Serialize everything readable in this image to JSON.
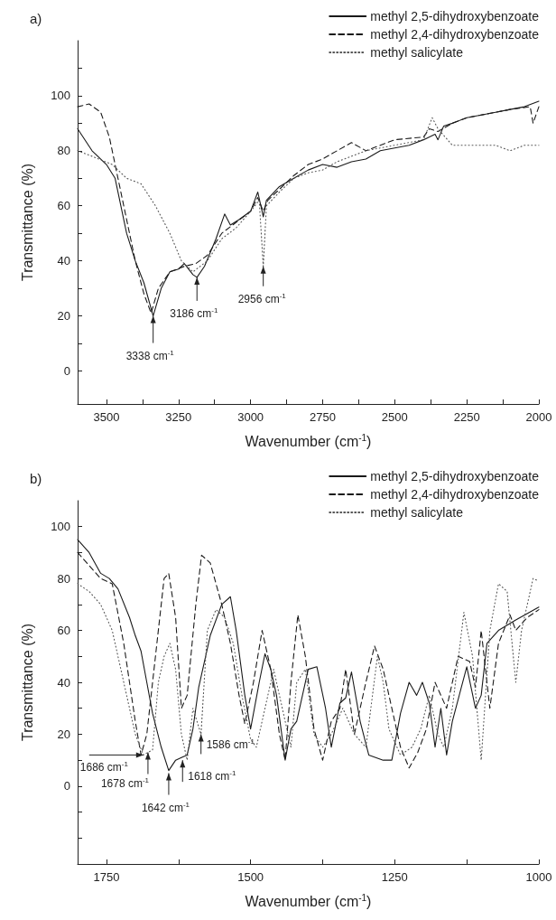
{
  "chart_data": [
    {
      "type": "line",
      "title": "a)",
      "xlabel": "Wavenumber (cm$^{-1}$)",
      "ylabel": "Transmittance (%)",
      "xlim": [
        3600,
        2000
      ],
      "ylim": [
        -12,
        120
      ],
      "xticks": [
        {
          "value": 3500,
          "label": "3500"
        },
        {
          "value": 3375,
          "label": null
        },
        {
          "value": 3250,
          "label": "3250"
        },
        {
          "value": 3125,
          "label": null
        },
        {
          "value": 3000,
          "label": "3000"
        },
        {
          "value": 2875,
          "label": null
        },
        {
          "value": 2750,
          "label": "2750"
        },
        {
          "value": 2625,
          "label": null
        },
        {
          "value": 2500,
          "label": "2500"
        },
        {
          "value": 2375,
          "label": null
        },
        {
          "value": 2250,
          "label": "2250"
        },
        {
          "value": 2125,
          "label": null
        },
        {
          "value": 2000,
          "label": "2000"
        }
      ],
      "yticks": [
        0,
        {
          "value": 10,
          "label": null
        },
        20,
        {
          "value": 30,
          "label": null
        },
        40,
        {
          "value": 50,
          "label": null
        },
        60,
        {
          "value": 70,
          "label": null
        },
        80,
        {
          "value": 90,
          "label": null
        },
        100,
        {
          "value": 110,
          "label": null
        }
      ],
      "grid": false,
      "legend": "top right",
      "marker": "none",
      "series": [
        {
          "name": "methyl 2,5-dihydroxybenzoate",
          "color": "#1a1a1a",
          "line_style": "solid",
          "x": [
            3600,
            3550,
            3500,
            3470,
            3430,
            3400,
            3370,
            3338,
            3310,
            3280,
            3250,
            3230,
            3200,
            3186,
            3160,
            3120,
            3090,
            3070,
            3040,
            3000,
            2975,
            2960,
            2956,
            2945,
            2900,
            2850,
            2800,
            2750,
            2700,
            2650,
            2600,
            2550,
            2500,
            2450,
            2400,
            2360,
            2350,
            2330,
            2300,
            2250,
            2200,
            2150,
            2100,
            2050,
            2000
          ],
          "values": [
            88,
            80,
            75,
            70,
            50,
            40,
            32,
            20,
            30,
            36,
            37,
            39,
            35,
            34,
            38,
            48,
            57,
            53,
            55,
            58,
            65,
            58,
            56,
            62,
            67,
            70,
            73,
            75,
            74,
            76,
            77,
            80,
            81,
            82,
            84,
            86,
            84,
            89,
            90,
            92,
            93,
            94,
            95,
            96,
            98
          ]
        },
        {
          "name": "methyl 2,4-dihydroxybenzoate",
          "color": "#1a1a1a",
          "line_style": "dashed",
          "x": [
            3600,
            3560,
            3520,
            3490,
            3460,
            3430,
            3400,
            3370,
            3345,
            3320,
            3280,
            3230,
            3190,
            3150,
            3100,
            3050,
            3000,
            2975,
            2956,
            2940,
            2900,
            2850,
            2800,
            2750,
            2700,
            2650,
            2600,
            2550,
            2500,
            2400,
            2380,
            2350,
            2300,
            2250,
            2150,
            2100,
            2030,
            2020,
            2000
          ],
          "values": [
            96,
            97,
            94,
            85,
            70,
            55,
            40,
            28,
            21,
            30,
            36,
            38,
            39,
            42,
            50,
            54,
            58,
            63,
            58,
            62,
            66,
            71,
            75,
            77,
            80,
            83,
            80,
            82,
            84,
            85,
            88,
            87,
            90,
            92,
            94,
            95,
            96,
            90,
            96
          ]
        },
        {
          "name": "methyl salicylate",
          "color": "#555555",
          "line_style": "dotted",
          "x": [
            3600,
            3550,
            3480,
            3430,
            3380,
            3330,
            3280,
            3240,
            3200,
            3150,
            3100,
            3050,
            3000,
            2970,
            2956,
            2945,
            2900,
            2850,
            2800,
            2750,
            2700,
            2650,
            2600,
            2500,
            2400,
            2370,
            2350,
            2300,
            2250,
            2200,
            2150,
            2100,
            2050,
            2000
          ],
          "values": [
            80,
            78,
            75,
            70,
            68,
            60,
            50,
            40,
            36,
            40,
            48,
            52,
            58,
            62,
            38,
            60,
            65,
            70,
            72,
            73,
            76,
            78,
            80,
            82,
            84,
            92,
            88,
            82,
            82,
            82,
            82,
            80,
            82,
            82
          ]
        }
      ],
      "annotations": [
        {
          "text": "3338 cm$^{-1}$",
          "x": 3338,
          "y": 20
        },
        {
          "text": "3186 cm$^{-1}$",
          "x": 3186,
          "y": 34
        },
        {
          "text": "2956 cm$^{-1}$",
          "x": 2956,
          "y": 38
        }
      ]
    },
    {
      "type": "line",
      "title": "b)",
      "xlabel": "Wavenumber (cm$^{-1}$)",
      "ylabel": "Transmittance (%)",
      "xlim": [
        1800,
        1000
      ],
      "ylim": [
        -30,
        110
      ],
      "xticks": [
        {
          "value": 1750,
          "label": "1750"
        },
        {
          "value": 1625,
          "label": null
        },
        {
          "value": 1500,
          "label": "1500"
        },
        {
          "value": 1375,
          "label": null
        },
        {
          "value": 1250,
          "label": "1250"
        },
        {
          "value": 1125,
          "label": null
        },
        {
          "value": 1000,
          "label": "1000"
        }
      ],
      "yticks": [
        {
          "value": -20,
          "label": null
        },
        {
          "value": -10,
          "label": null
        },
        0,
        {
          "value": 10,
          "label": null
        },
        20,
        {
          "value": 30,
          "label": null
        },
        40,
        {
          "value": 50,
          "label": null
        },
        60,
        {
          "value": 70,
          "label": null
        },
        80,
        {
          "value": 90,
          "label": null
        },
        100
      ],
      "grid": false,
      "legend": "top right",
      "marker": "none",
      "series": [
        {
          "name": "methyl 2,5-dihydroxybenzoate",
          "color": "#1a1a1a",
          "line_style": "solid",
          "x": [
            1800,
            1780,
            1760,
            1745,
            1730,
            1710,
            1700,
            1690,
            1680,
            1670,
            1655,
            1642,
            1630,
            1620,
            1610,
            1600,
            1590,
            1570,
            1550,
            1535,
            1525,
            1510,
            1500,
            1485,
            1475,
            1465,
            1455,
            1440,
            1430,
            1420,
            1400,
            1385,
            1370,
            1360,
            1345,
            1335,
            1325,
            1310,
            1295,
            1270,
            1255,
            1240,
            1225,
            1212,
            1202,
            1190,
            1180,
            1170,
            1160,
            1150,
            1125,
            1110,
            1100,
            1090,
            1070,
            1040,
            1000
          ],
          "values": [
            95,
            90,
            82,
            80,
            76,
            65,
            58,
            52,
            40,
            28,
            15,
            6,
            10,
            11,
            12,
            22,
            38,
            58,
            70,
            73,
            60,
            35,
            22,
            40,
            51,
            45,
            35,
            10,
            22,
            25,
            45,
            46,
            30,
            15,
            32,
            34,
            44,
            25,
            12,
            10,
            10,
            28,
            40,
            35,
            40,
            32,
            15,
            30,
            12,
            25,
            46,
            30,
            35,
            55,
            60,
            64,
            69
          ]
        },
        {
          "name": "methyl 2,4-dihydroxybenzoate",
          "color": "#1a1a1a",
          "line_style": "dashed",
          "x": [
            1800,
            1780,
            1760,
            1740,
            1720,
            1700,
            1690,
            1680,
            1665,
            1650,
            1642,
            1630,
            1620,
            1610,
            1595,
            1585,
            1570,
            1550,
            1535,
            1520,
            1510,
            1495,
            1480,
            1465,
            1450,
            1440,
            1430,
            1418,
            1405,
            1390,
            1375,
            1360,
            1345,
            1335,
            1320,
            1300,
            1285,
            1270,
            1255,
            1240,
            1225,
            1210,
            1195,
            1180,
            1160,
            1140,
            1120,
            1110,
            1100,
            1085,
            1070,
            1050,
            1040,
            1020,
            1000
          ],
          "values": [
            90,
            85,
            80,
            78,
            55,
            25,
            12,
            20,
            50,
            80,
            82,
            65,
            30,
            35,
            70,
            89,
            86,
            70,
            55,
            35,
            24,
            40,
            60,
            45,
            20,
            10,
            40,
            66,
            50,
            22,
            10,
            25,
            30,
            45,
            20,
            40,
            54,
            45,
            30,
            15,
            7,
            13,
            22,
            40,
            30,
            50,
            48,
            38,
            60,
            30,
            55,
            66,
            60,
            65,
            68
          ]
        },
        {
          "name": "methyl salicylate",
          "color": "#555555",
          "line_style": "dotted",
          "x": [
            1800,
            1780,
            1760,
            1740,
            1720,
            1700,
            1686,
            1670,
            1660,
            1650,
            1640,
            1630,
            1620,
            1610,
            1600,
            1586,
            1575,
            1560,
            1545,
            1530,
            1515,
            1500,
            1490,
            1470,
            1460,
            1445,
            1430,
            1420,
            1405,
            1390,
            1375,
            1360,
            1340,
            1320,
            1300,
            1280,
            1270,
            1260,
            1240,
            1220,
            1205,
            1190,
            1175,
            1165,
            1150,
            1130,
            1115,
            1100,
            1085,
            1070,
            1055,
            1040,
            1030,
            1010,
            1000
          ],
          "values": [
            78,
            75,
            70,
            60,
            40,
            20,
            12,
            14,
            40,
            50,
            55,
            45,
            20,
            10,
            30,
            20,
            60,
            68,
            65,
            55,
            35,
            18,
            15,
            35,
            45,
            30,
            15,
            40,
            45,
            20,
            15,
            20,
            30,
            20,
            15,
            50,
            40,
            22,
            12,
            15,
            22,
            35,
            20,
            15,
            30,
            67,
            50,
            10,
            60,
            78,
            75,
            40,
            60,
            80,
            79
          ]
        }
      ],
      "annotations": [
        {
          "text": "1686 cm$^{-1}$",
          "x": 1686,
          "y": 12
        },
        {
          "text": "1678 cm$^{-1}$",
          "x": 1678,
          "y": 13
        },
        {
          "text": "1642 cm$^{-1}$",
          "x": 1642,
          "y": 5
        },
        {
          "text": "1618 cm$^{-1}$",
          "x": 1618,
          "y": 10
        },
        {
          "text": "1586 cm$^{-1}$",
          "x": 1586,
          "y": 20
        }
      ]
    }
  ]
}
